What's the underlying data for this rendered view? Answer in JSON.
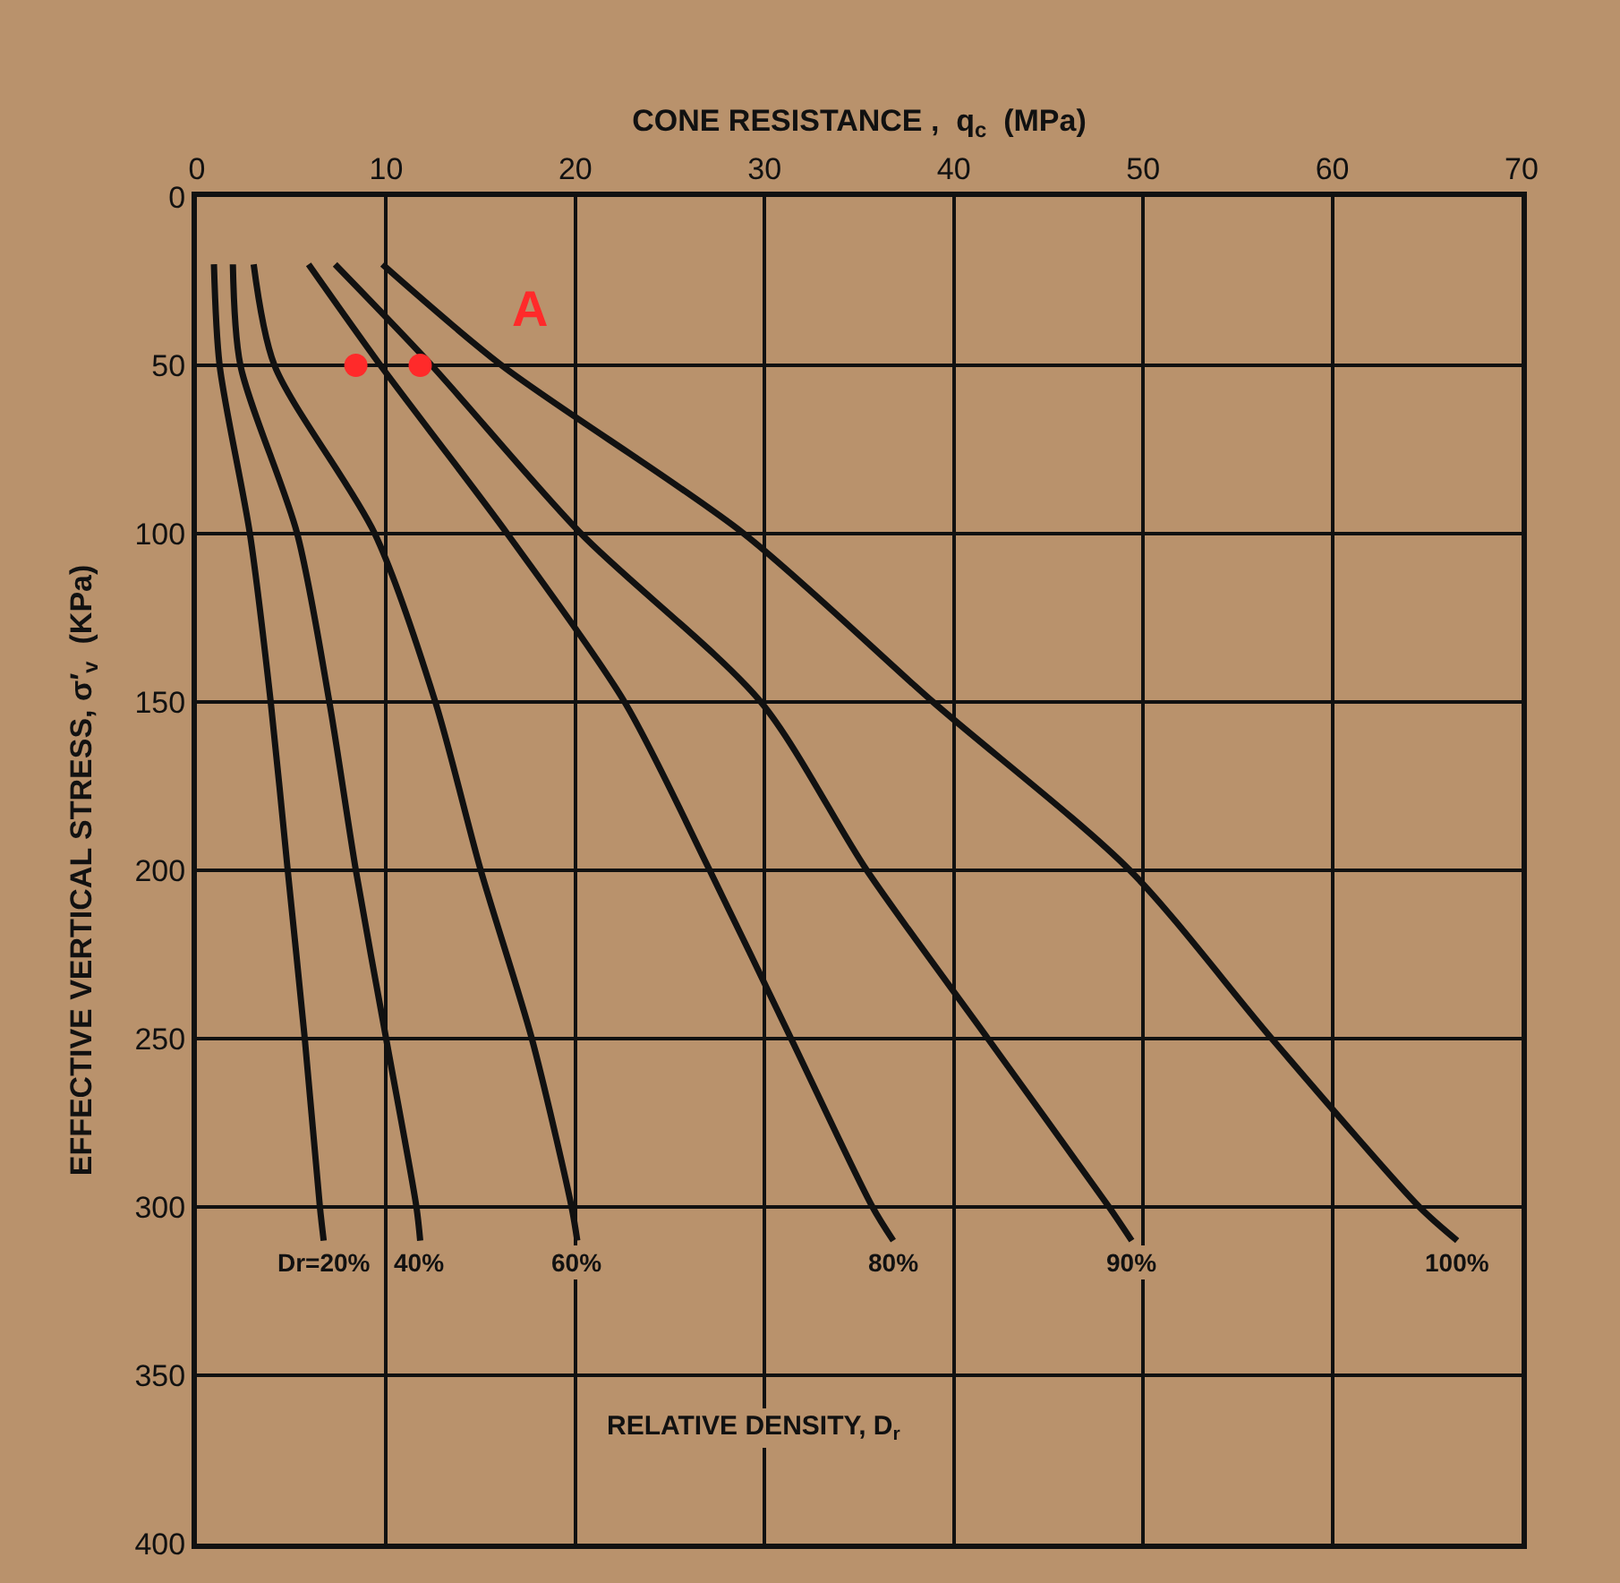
{
  "chart_data": {
    "type": "line",
    "xlabel": "CONE RESISTANCE ,  q$_{c}$  (MPa)",
    "ylabel": "EFFECTIVE VERTICAL STRESS, σ′$_{v}$  (KPa)",
    "xlim": [
      0,
      70
    ],
    "xticks": [
      0,
      10,
      20,
      30,
      40,
      50,
      60,
      70
    ],
    "ylim": [
      400,
      0
    ],
    "yticks": [
      0,
      50,
      100,
      150,
      200,
      250,
      300,
      350,
      400
    ],
    "grid": true,
    "legend": false,
    "marker": "none",
    "line_style": "solid",
    "series": [
      {
        "name": "Dr=20%",
        "color": "#111111",
        "x": [
          0.9,
          1.2,
          2.8,
          3.9,
          4.8,
          5.7,
          6.5,
          6.7
        ],
        "values": [
          20,
          50,
          100,
          150,
          200,
          250,
          300,
          310
        ]
      },
      {
        "name": "40%",
        "color": "#111111",
        "x": [
          1.9,
          2.3,
          5.3,
          7.0,
          8.4,
          10.0,
          11.6,
          11.8
        ],
        "values": [
          20,
          50,
          100,
          150,
          200,
          250,
          300,
          310
        ]
      },
      {
        "name": "60%",
        "color": "#111111",
        "x": [
          3.0,
          4.1,
          9.4,
          12.6,
          15.0,
          17.7,
          19.8,
          20.1
        ],
        "values": [
          20,
          50,
          100,
          150,
          200,
          250,
          300,
          310
        ]
      },
      {
        "name": "80%",
        "color": "#111111",
        "x": [
          5.9,
          9.7,
          16.4,
          22.6,
          27.1,
          31.4,
          35.7,
          36.8
        ],
        "values": [
          20,
          50,
          100,
          150,
          200,
          250,
          300,
          310
        ]
      },
      {
        "name": "90%",
        "color": "#111111",
        "x": [
          7.3,
          12.4,
          20.3,
          29.8,
          35.4,
          41.8,
          48.2,
          49.4
        ],
        "values": [
          20,
          50,
          100,
          150,
          200,
          250,
          300,
          310
        ]
      },
      {
        "name": "100%",
        "color": "#111111",
        "x": [
          9.8,
          16.1,
          28.9,
          38.9,
          49.3,
          56.8,
          64.6,
          66.6
        ],
        "values": [
          20,
          50,
          100,
          150,
          200,
          250,
          300,
          310
        ]
      },
      {
        "type": "scatter",
        "color": "#ff2a2a",
        "marker": "circle",
        "x": [
          8.4,
          11.8
        ],
        "values": [
          50,
          50
        ]
      }
    ],
    "annotations": [
      "A",
      "RELATIVE DENSITY, D$_{r}$"
    ]
  }
}
